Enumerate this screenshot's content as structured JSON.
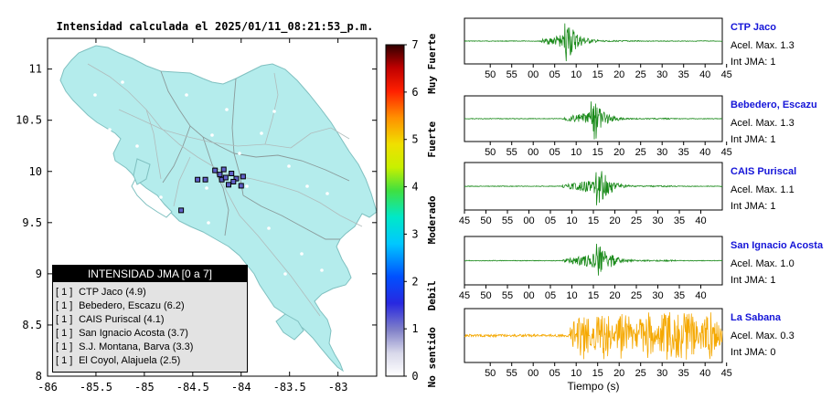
{
  "map": {
    "title": "Intensidad calculada el 2025/01/11_08:21:53_p.m.",
    "x_ticks": [
      "-86",
      "-85.5",
      "-85",
      "-84.5",
      "-84",
      "-83.5",
      "-83"
    ],
    "y_ticks": [
      "11",
      "10.5",
      "10",
      "9.5",
      "9",
      "8.5",
      "8"
    ],
    "land_color": "#b4ecec",
    "legend": {
      "title": "INTENSIDAD JMA [0 a 7]",
      "items": [
        {
          "marker": "[ 1 ]",
          "label": "CTP Jaco (4.9)"
        },
        {
          "marker": "[ 1 ]",
          "label": "Bebedero, Escazu (6.2)"
        },
        {
          "marker": "[ 1 ]",
          "label": "CAIS Puriscal (4.1)"
        },
        {
          "marker": "[ 1 ]",
          "label": "San Ignacio Acosta (3.7)"
        },
        {
          "marker": "[ 1 ]",
          "label": "S.J. Montana, Barva (3.3)"
        },
        {
          "marker": "[ 1 ]",
          "label": "El Coyol, Alajuela (2.5)"
        }
      ]
    }
  },
  "colorbar": {
    "ticks": [
      "7",
      "6",
      "5",
      "4",
      "3",
      "2",
      "1",
      "0"
    ],
    "labels": [
      "Muy Fuerte",
      "Fuerte",
      "Moderado",
      "Debil",
      "No sentido"
    ]
  },
  "chart_data": [
    {
      "type": "map-scatter",
      "xlim": [
        -86,
        -82.6
      ],
      "ylim": [
        8,
        11.3
      ],
      "stations": [
        {
          "lon": -84.27,
          "lat": 10.01,
          "intensity": 1
        },
        {
          "lon": -84.18,
          "lat": 10.02,
          "intensity": 1
        },
        {
          "lon": -84.1,
          "lat": 9.98,
          "intensity": 1
        },
        {
          "lon": -84.05,
          "lat": 9.93,
          "intensity": 1
        },
        {
          "lon": -84.2,
          "lat": 9.92,
          "intensity": 1
        },
        {
          "lon": -84.0,
          "lat": 9.86,
          "intensity": 1
        },
        {
          "lon": -84.13,
          "lat": 9.87,
          "intensity": 1
        },
        {
          "lon": -84.37,
          "lat": 9.92,
          "intensity": 1
        },
        {
          "lon": -84.45,
          "lat": 9.92,
          "intensity": 1
        },
        {
          "lon": -84.22,
          "lat": 9.97,
          "intensity": 1
        },
        {
          "lon": -84.16,
          "lat": 9.94,
          "intensity": 1
        },
        {
          "lon": -83.98,
          "lat": 9.95,
          "intensity": 1
        },
        {
          "lon": -84.62,
          "lat": 9.62,
          "intensity": 1
        },
        {
          "lon": -84.08,
          "lat": 9.9,
          "intensity": 1
        }
      ]
    },
    {
      "type": "line",
      "title": "CTP Jaco",
      "x_ticks": [
        "50",
        "55",
        "00",
        "05",
        "10",
        "15",
        "20",
        "25",
        "30",
        "35",
        "40",
        "45"
      ],
      "info": [
        "Acel. Max. 1.3",
        "Int JMA: 1"
      ],
      "color": "#1a8a1a",
      "onset": 0.29,
      "peak": 0.4,
      "end": 0.68,
      "amplitude": 1.3
    },
    {
      "type": "line",
      "title": "Bebedero, Escazu",
      "x_ticks": [
        "50",
        "55",
        "00",
        "05",
        "10",
        "15",
        "20",
        "25",
        "30",
        "35",
        "40",
        "45"
      ],
      "info": [
        "Acel. Max. 1.3",
        "Int JMA: 1"
      ],
      "color": "#1a8a1a",
      "onset": 0.38,
      "peak": 0.5,
      "end": 0.8,
      "amplitude": 1.3
    },
    {
      "type": "line",
      "title": "CAIS Puriscal",
      "x_ticks": [
        "45",
        "50",
        "55",
        "00",
        "05",
        "10",
        "15",
        "20",
        "25",
        "30",
        "35",
        "40"
      ],
      "info": [
        "Acel. Max. 1.1",
        "Int JMA: 1"
      ],
      "color": "#1a8a1a",
      "onset": 0.38,
      "peak": 0.52,
      "end": 0.82,
      "amplitude": 1.1
    },
    {
      "type": "line",
      "title": "San Ignacio Acosta",
      "x_ticks": [
        "45",
        "50",
        "55",
        "00",
        "05",
        "10",
        "15",
        "20",
        "25",
        "30",
        "35",
        "40"
      ],
      "info": [
        "Acel. Max. 1.0",
        "Int JMA: 1"
      ],
      "color": "#1a8a1a",
      "onset": 0.38,
      "peak": 0.52,
      "end": 0.82,
      "amplitude": 1.0
    },
    {
      "type": "line",
      "title": "La Sabana",
      "x_ticks": [
        "50",
        "55",
        "00",
        "05",
        "10",
        "15",
        "20",
        "25",
        "30",
        "35",
        "40",
        "45"
      ],
      "xlabel": "Tiempo (s)",
      "info": [
        "Acel. Max. 0.3",
        "Int JMA: 0"
      ],
      "color": "#f5a800",
      "onset": 0.41,
      "peak": 0.58,
      "end": 1.0,
      "amplitude": 0.3
    }
  ]
}
